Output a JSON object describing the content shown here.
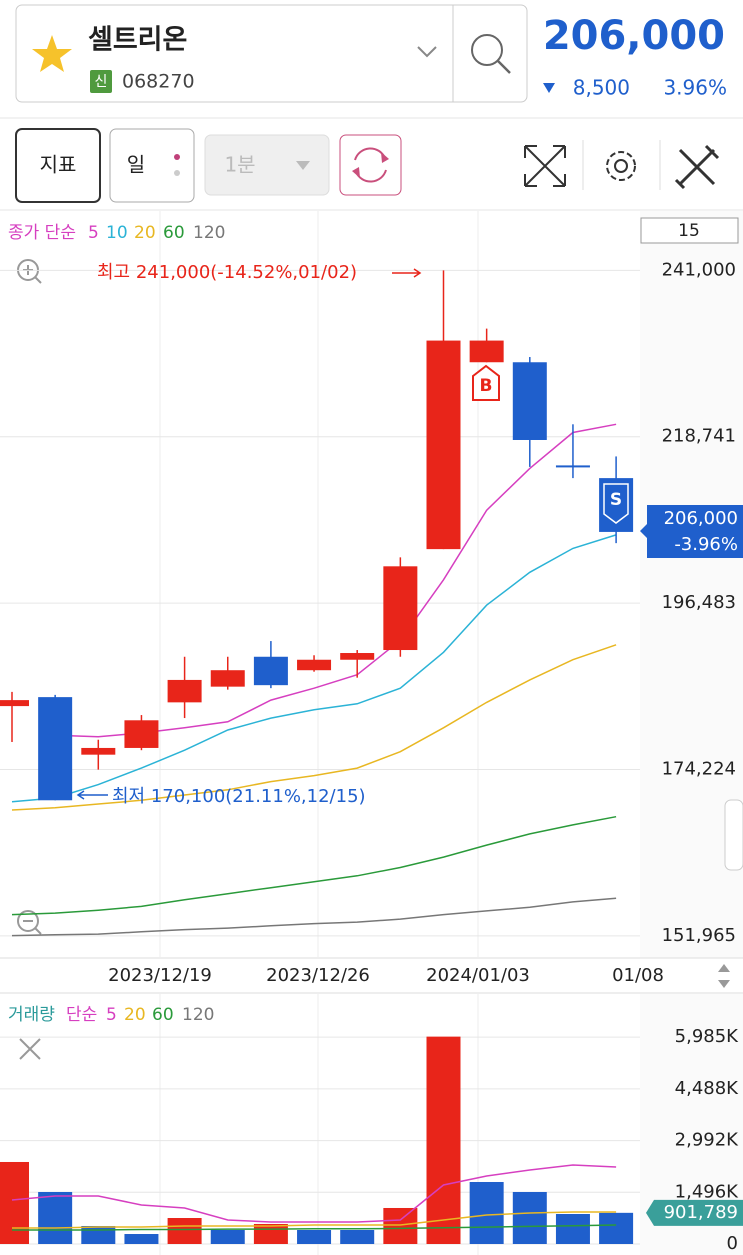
{
  "header": {
    "name": "셀트리온",
    "badge": "신",
    "code": "068270",
    "price": "206,000",
    "change": "8,500",
    "change_pct": "3.96%"
  },
  "toolbar": {
    "indicator": "지표",
    "period": "일",
    "interval": "1분"
  },
  "chart_data": [
    {
      "type": "candlestick",
      "legend_label": "종가 단순",
      "count_label": "15",
      "categories": [
        null,
        null,
        null,
        null,
        null,
        null,
        null,
        null,
        null,
        null,
        null,
        null,
        null,
        null,
        null
      ],
      "xtick_labels": [
        "2023/12/19",
        "2023/12/26",
        "2024/01/03",
        "01/08"
      ],
      "open": [
        182700,
        183900,
        176200,
        177100,
        183200,
        185300,
        189300,
        187500,
        188900,
        190200,
        203700,
        228700,
        228700,
        214900,
        213200
      ],
      "high": [
        184600,
        184200,
        178200,
        181500,
        189300,
        189300,
        191400,
        189500,
        190200,
        202600,
        241000,
        233200,
        229400,
        220400,
        216100
      ],
      "low": [
        177900,
        170100,
        174200,
        176800,
        181100,
        184900,
        185100,
        187300,
        186500,
        189300,
        203700,
        228700,
        214700,
        213200,
        204500
      ],
      "close": [
        183500,
        170100,
        177100,
        180800,
        186200,
        187500,
        185500,
        188900,
        189800,
        201400,
        231600,
        231600,
        218300,
        214700,
        206000
      ],
      "up_color": "#e8251a",
      "down_color": "#1f5fcc",
      "overlays": [
        {
          "name": "5",
          "color": "#d63fc0",
          "values": [
            null,
            178800,
            178600,
            179100,
            179800,
            180600,
            183500,
            185100,
            186900,
            191500,
            199600,
            208900,
            214500,
            219300,
            220400
          ]
        },
        {
          "name": "10",
          "color": "#2bb3d6",
          "values": [
            169900,
            170400,
            172200,
            174400,
            176800,
            179500,
            181100,
            182200,
            183000,
            185100,
            189900,
            196200,
            200600,
            203800,
            205600
          ]
        },
        {
          "name": "20",
          "color": "#e8b722",
          "values": [
            168800,
            169100,
            169600,
            170100,
            170800,
            171500,
            172600,
            173400,
            174400,
            176600,
            179800,
            183200,
            186200,
            188900,
            190900
          ]
        },
        {
          "name": "60",
          "color": "#2a9a3a",
          "values": [
            154800,
            155000,
            155400,
            155900,
            156800,
            157600,
            158400,
            159200,
            160000,
            161100,
            162500,
            164100,
            165600,
            166800,
            167900
          ]
        },
        {
          "name": "120",
          "color": "#777777",
          "values": [
            152000,
            152100,
            152200,
            152500,
            152800,
            153000,
            153300,
            153600,
            153800,
            154200,
            154800,
            155300,
            155800,
            156500,
            157000
          ]
        }
      ],
      "ylim": [
        149400,
        248400
      ],
      "yticks": [
        {
          "value": 241000,
          "label": "241,000"
        },
        {
          "value": 218741,
          "label": "218,741"
        },
        {
          "value": 196483,
          "label": "196,483"
        },
        {
          "value": 174224,
          "label": "174,224"
        },
        {
          "value": 151965,
          "label": "151,965"
        }
      ],
      "annotations": {
        "high": "최고 241,000(-14.52%,01/02)",
        "low": "최저 170,100(21.11%,12/15)"
      },
      "signals": [
        "B",
        "S"
      ],
      "last_price": {
        "price": "206,000",
        "change": "-3.96%"
      }
    },
    {
      "type": "bar",
      "legend_label": "거래량",
      "legend_sub": "단순",
      "values": [
        2373000,
        1505000,
        521000,
        289000,
        752000,
        405000,
        579000,
        405000,
        405000,
        1042000,
        6000000,
        1794000,
        1505000,
        868000,
        901789
      ],
      "value_labels": [
        null,
        null,
        null,
        null,
        null,
        null,
        null,
        null,
        null,
        null,
        null,
        null,
        null,
        null,
        "901,789"
      ],
      "colors": [
        "#e8251a",
        "#1f5fcc",
        "#1f5fcc",
        "#1f5fcc",
        "#e8251a",
        "#1f5fcc",
        "#e8251a",
        "#1f5fcc",
        "#1f5fcc",
        "#e8251a",
        "#e8251a",
        "#1f5fcc",
        "#1f5fcc",
        "#1f5fcc",
        "#1f5fcc"
      ],
      "overlays": [
        {
          "name": "5",
          "color": "#d63fc0",
          "values": [
            1273000,
            1389000,
            1389000,
            1129000,
            1042000,
            694000,
            637000,
            637000,
            637000,
            694000,
            1707000,
            1968000,
            2141000,
            2286000,
            2228000
          ]
        },
        {
          "name": "20",
          "color": "#e8b722",
          "values": [
            463000,
            463000,
            492000,
            492000,
            521000,
            521000,
            521000,
            550000,
            550000,
            550000,
            694000,
            839000,
            897000,
            926000,
            926000
          ]
        },
        {
          "name": "60",
          "color": "#2a9a3a",
          "values": [
            405000,
            405000,
            405000,
            420000,
            420000,
            430000,
            430000,
            440000,
            440000,
            450000,
            470000,
            490000,
            510000,
            530000,
            550000
          ]
        },
        {
          "name": "120",
          "color": "#777777",
          "values": [
            null,
            null,
            null,
            null,
            null,
            null,
            null,
            null,
            null,
            null,
            null,
            null,
            null,
            null,
            null
          ]
        }
      ],
      "ylim": [
        0,
        6192000
      ],
      "yticks": [
        {
          "value": 5985000,
          "label": "5,985K"
        },
        {
          "value": 4488000,
          "label": "4,488K"
        },
        {
          "value": 2992000,
          "label": "2,992K"
        },
        {
          "value": 1496000,
          "label": "1,496K"
        },
        0
      ]
    }
  ]
}
